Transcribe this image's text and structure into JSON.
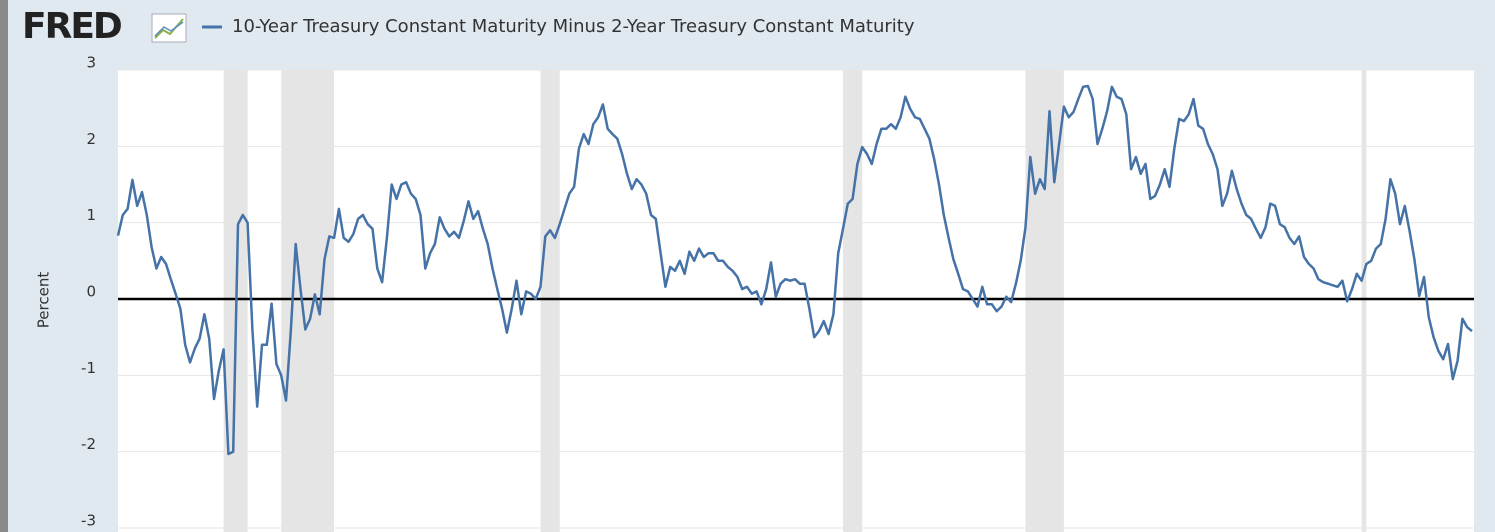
{
  "chart_data": {
    "type": "line",
    "logo": "FRED",
    "title": "10-Year Treasury Constant Maturity Minus 2-Year Treasury Constant Maturity",
    "y_label": "Percent",
    "ylim": [
      -3,
      3
    ],
    "yticks": [
      3,
      2,
      1,
      0,
      -1,
      -2,
      -3
    ],
    "grid": true,
    "zero_line": true,
    "recessions": [
      [
        22,
        27
      ],
      [
        34,
        45
      ],
      [
        88,
        92
      ],
      [
        151,
        155
      ],
      [
        189,
        197
      ],
      [
        259,
        260
      ]
    ],
    "series": [
      {
        "name": "10-Year Treasury Constant Maturity Minus 2-Year Treasury Constant Maturity",
        "color": "#4572a7",
        "values": [
          0.83,
          1.1,
          1.18,
          1.56,
          1.22,
          1.4,
          1.1,
          0.68,
          0.4,
          0.55,
          0.46,
          0.26,
          0.07,
          -0.13,
          -0.6,
          -0.83,
          -0.65,
          -0.52,
          -0.2,
          -0.52,
          -1.31,
          -0.94,
          -0.66,
          -2.03,
          -2.0,
          0.98,
          1.1,
          1.0,
          -0.4,
          -1.41,
          -0.6,
          -0.6,
          -0.06,
          -0.85,
          -1.0,
          -1.33,
          -0.4,
          0.72,
          0.13,
          -0.4,
          -0.26,
          0.06,
          -0.2,
          0.52,
          0.82,
          0.8,
          1.18,
          0.8,
          0.75,
          0.85,
          1.05,
          1.1,
          0.98,
          0.92,
          0.4,
          0.22,
          0.8,
          1.5,
          1.31,
          1.5,
          1.53,
          1.38,
          1.31,
          1.1,
          0.4,
          0.6,
          0.72,
          1.07,
          0.92,
          0.82,
          0.88,
          0.8,
          1.02,
          1.28,
          1.05,
          1.15,
          0.92,
          0.72,
          0.4,
          0.13,
          -0.13,
          -0.44,
          -0.13,
          0.24,
          -0.2,
          0.1,
          0.07,
          0,
          0.16,
          0.82,
          0.9,
          0.8,
          0.98,
          1.18,
          1.38,
          1.47,
          1.97,
          2.16,
          2.03,
          2.29,
          2.38,
          2.55,
          2.23,
          2.16,
          2.1,
          1.9,
          1.64,
          1.44,
          1.57,
          1.5,
          1.38,
          1.1,
          1.05,
          0.6,
          0.16,
          0.42,
          0.37,
          0.5,
          0.33,
          0.62,
          0.5,
          0.66,
          0.55,
          0.6,
          0.6,
          0.5,
          0.5,
          0.42,
          0.37,
          0.29,
          0.13,
          0.16,
          0.07,
          0.1,
          -0.07,
          0.13,
          0.48,
          0.03,
          0.2,
          0.26,
          0.24,
          0.26,
          0.2,
          0.2,
          -0.13,
          -0.5,
          -0.42,
          -0.29,
          -0.46,
          -0.2,
          0.6,
          0.92,
          1.25,
          1.31,
          1.77,
          1.99,
          1.9,
          1.77,
          2.03,
          2.23,
          2.23,
          2.29,
          2.23,
          2.38,
          2.65,
          2.49,
          2.38,
          2.36,
          2.23,
          2.1,
          1.83,
          1.5,
          1.1,
          0.8,
          0.52,
          0.33,
          0.13,
          0.1,
          0,
          -0.1,
          0.16,
          -0.07,
          -0.07,
          -0.16,
          -0.1,
          0.03,
          -0.04,
          0.2,
          0.5,
          0.94,
          1.86,
          1.38,
          1.57,
          1.44,
          2.46,
          1.53,
          2.03,
          2.52,
          2.38,
          2.45,
          2.62,
          2.78,
          2.79,
          2.62,
          2.03,
          2.23,
          2.46,
          2.78,
          2.65,
          2.62,
          2.42,
          1.7,
          1.86,
          1.64,
          1.77,
          1.31,
          1.35,
          1.5,
          1.7,
          1.47,
          1.97,
          2.36,
          2.33,
          2.42,
          2.62,
          2.27,
          2.23,
          2.03,
          1.9,
          1.7,
          1.22,
          1.38,
          1.68,
          1.44,
          1.25,
          1.1,
          1.05,
          0.92,
          0.8,
          0.94,
          1.25,
          1.22,
          0.98,
          0.94,
          0.8,
          0.72,
          0.82,
          0.55,
          0.46,
          0.4,
          0.26,
          0.22,
          0.2,
          0.18,
          0.16,
          0.24,
          -0.03,
          0.13,
          0.33,
          0.24,
          0.46,
          0.5,
          0.66,
          0.72,
          1.05,
          1.57,
          1.38,
          0.98,
          1.22,
          0.89,
          0.52,
          0.04,
          0.29,
          -0.24,
          -0.5,
          -0.68,
          -0.79,
          -0.59,
          -1.05,
          -0.81,
          -0.26,
          -0.37,
          -0.42
        ]
      }
    ]
  }
}
